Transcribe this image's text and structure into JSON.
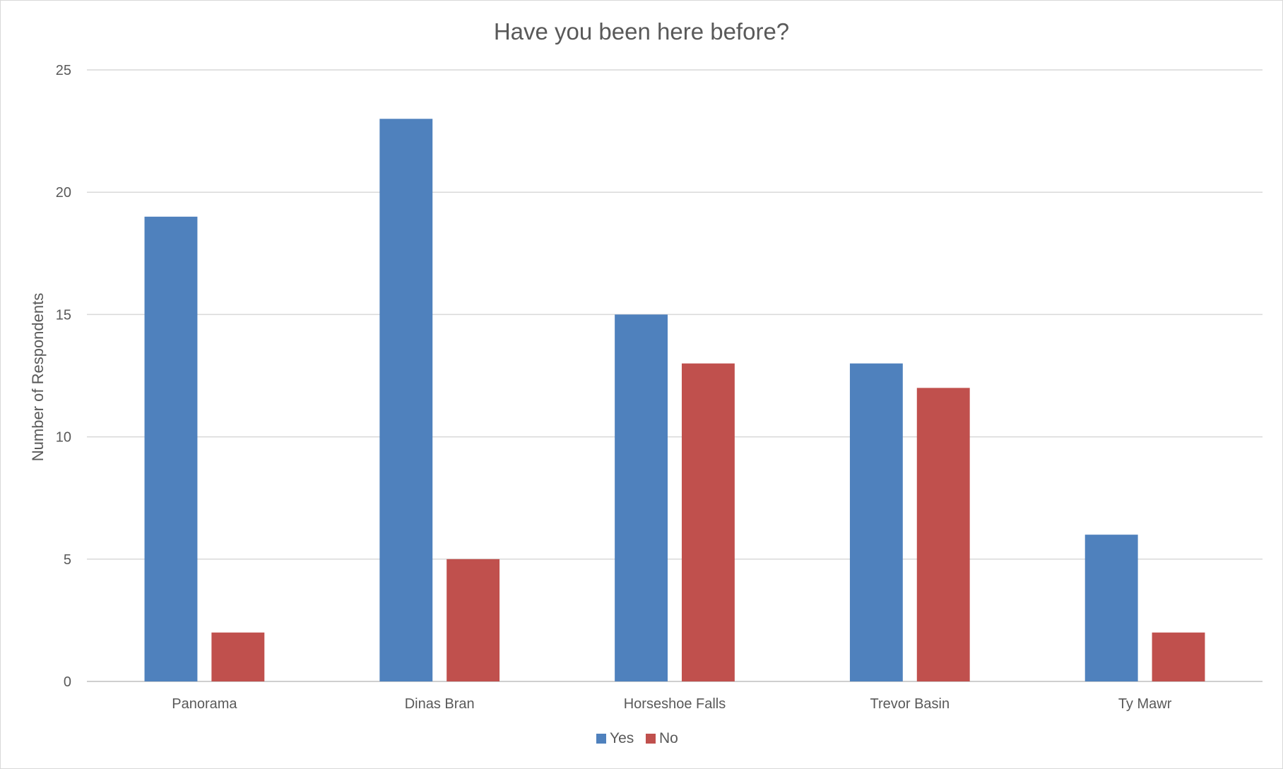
{
  "chart_data": {
    "type": "bar",
    "title": "Have you been here before?",
    "xlabel": "",
    "ylabel": "Number of Respondents",
    "categories": [
      "Panorama",
      "Dinas Bran",
      "Horseshoe Falls",
      "Trevor Basin",
      "Ty Mawr"
    ],
    "series": [
      {
        "name": "Yes",
        "color": "#4f81bd",
        "values": [
          19,
          23,
          15,
          13,
          6
        ]
      },
      {
        "name": "No",
        "color": "#c0504d",
        "values": [
          2,
          5,
          13,
          12,
          2
        ]
      }
    ],
    "ylim": [
      0,
      25
    ],
    "yticks": [
      "0",
      "5",
      "10",
      "15",
      "20",
      "25"
    ],
    "grid": true,
    "legend_position": "bottom"
  }
}
